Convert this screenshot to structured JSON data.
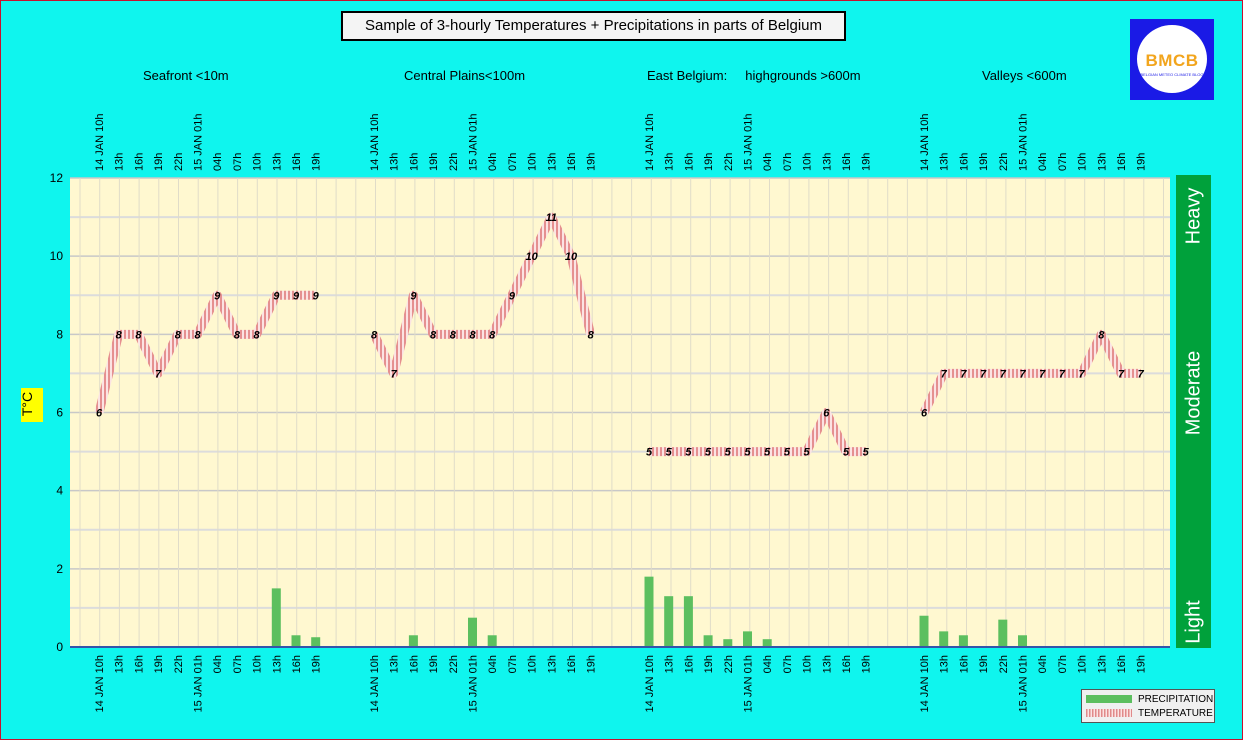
{
  "title": "Sample of 3-hourly Temperatures + Precipitations in parts of Belgium",
  "logo": {
    "text": "BMCB",
    "subtext": "BELGIAN METEO CLIMATE BLOG"
  },
  "regions": [
    "Seafront <10m",
    "Central Plains<100m",
    "East Belgium:     highgrounds >600m",
    "Valleys <600m"
  ],
  "intensity_labels": {
    "heavy": "Heavy",
    "moderate": "Moderate",
    "light": "Light"
  },
  "legend": {
    "precip": "PRECIPITATION",
    "temp": "TEMPERATURE"
  },
  "colors": {
    "background": "#0ff5ee",
    "plot": "#fff8d0",
    "precip": "#5cbf5f",
    "temp": "#f0a8a8",
    "sidebar": "#00a13b",
    "title_border": "#000000"
  },
  "chart_data": {
    "type": "bar",
    "ylabel": "T°C",
    "ylim": [
      0,
      12
    ],
    "yticks": [
      0,
      2,
      4,
      6,
      8,
      10,
      12
    ],
    "grid": true,
    "legend_position": "bottom-right",
    "groups": [
      {
        "name": "Seafront <10m",
        "x": [
          "14 JAN 10h",
          "13h",
          "16h",
          "19h",
          "22h",
          "15 JAN 01h",
          "04h",
          "07h",
          "10h",
          "13h",
          "16h",
          "19h"
        ],
        "temperature": [
          6,
          8,
          8,
          7,
          8,
          8,
          9,
          8,
          8,
          9,
          9,
          9
        ],
        "precipitation": [
          0,
          0,
          0,
          0,
          0,
          0,
          0,
          0,
          0,
          1.5,
          0.3,
          0.25
        ]
      },
      {
        "name": "Central Plains<100m",
        "x": [
          "14 JAN 10h",
          "13h",
          "16h",
          "19h",
          "22h",
          "15 JAN 01h",
          "04h",
          "07h",
          "10h",
          "13h",
          "16h",
          "19h"
        ],
        "temperature": [
          8,
          7,
          9,
          8,
          8,
          8,
          8,
          9,
          10,
          11,
          10,
          8
        ],
        "precipitation": [
          0,
          0,
          0.3,
          0,
          0,
          0.75,
          0.3,
          0,
          0,
          0,
          0,
          0
        ]
      },
      {
        "name": "East Belgium: highgrounds >600m",
        "x": [
          "14 JAN 10h",
          "13h",
          "16h",
          "19h",
          "22h",
          "15 JAN 01h",
          "04h",
          "07h",
          "10h",
          "13h",
          "16h",
          "19h"
        ],
        "temperature": [
          5,
          5,
          5,
          5,
          5,
          5,
          5,
          5,
          5,
          6,
          5,
          5
        ],
        "precipitation": [
          1.8,
          1.3,
          1.3,
          0.3,
          0.2,
          0.4,
          0.2,
          0,
          0,
          0,
          0,
          0
        ]
      },
      {
        "name": "Valleys <600m",
        "x": [
          "14 JAN 10h",
          "13h",
          "16h",
          "19h",
          "22h",
          "15 JAN 01h",
          "04h",
          "07h",
          "10h",
          "13h",
          "16h",
          "19h"
        ],
        "temperature": [
          6,
          7,
          7,
          7,
          7,
          7,
          7,
          7,
          7,
          8,
          7,
          7
        ],
        "precipitation": [
          0.8,
          0.4,
          0.3,
          0,
          0.7,
          0.3,
          0,
          0,
          0,
          0,
          0,
          0
        ]
      }
    ]
  }
}
